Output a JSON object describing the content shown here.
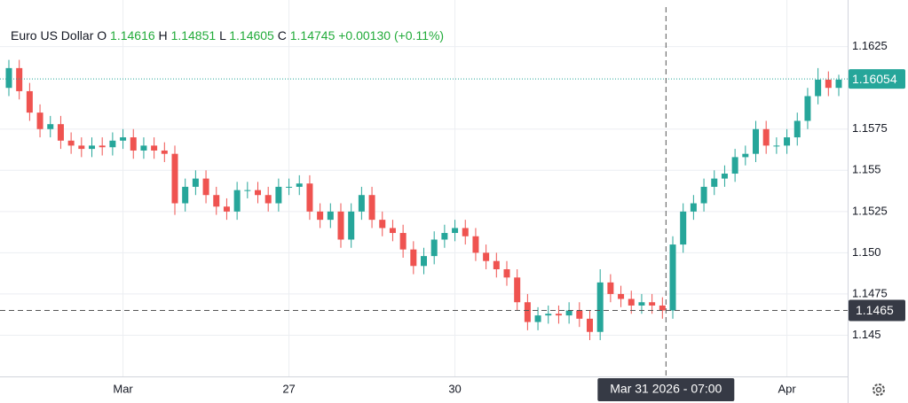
{
  "header": {
    "name": "Euro US Dollar",
    "labels": [
      "O",
      "H",
      "L",
      "C"
    ],
    "values": [
      1.14616,
      1.14851,
      1.14605,
      1.14745
    ],
    "change": "+0.00130",
    "change_pct": "(+0.11%)"
  },
  "chart_data": {
    "type": "candlestick",
    "categories": [
      null,
      null,
      null,
      null,
      null,
      null,
      null,
      null,
      null,
      null,
      null,
      "Mar",
      null,
      null,
      null,
      null,
      null,
      null,
      null,
      null,
      null,
      null,
      null,
      null,
      null,
      null,
      null,
      "27",
      null,
      null,
      null,
      null,
      null,
      null,
      null,
      null,
      null,
      null,
      null,
      null,
      null,
      null,
      null,
      "30",
      null,
      null,
      null,
      null,
      null,
      null,
      null,
      null,
      null,
      null,
      null,
      null,
      null,
      null,
      null,
      null,
      null,
      null,
      null,
      null,
      null,
      null,
      null,
      null,
      null,
      null,
      null,
      null,
      null,
      null,
      null,
      "Apr",
      null,
      null,
      null,
      null,
      null
    ],
    "open": [
      1.16,
      1.1612,
      1.1598,
      1.1585,
      1.1575,
      1.1578,
      1.1568,
      1.1565,
      1.1563,
      1.1565,
      1.1564,
      1.1568,
      1.157,
      1.1562,
      1.1565,
      1.1562,
      1.156,
      1.153,
      1.154,
      1.1545,
      1.1535,
      1.1528,
      1.1525,
      1.1538,
      1.1538,
      1.1535,
      1.153,
      1.154,
      1.154,
      1.1542,
      1.1525,
      1.152,
      1.1525,
      1.1508,
      1.1525,
      1.1535,
      1.152,
      1.1515,
      1.1512,
      1.1502,
      1.1492,
      1.1498,
      1.1508,
      1.1512,
      1.1515,
      1.151,
      1.15,
      1.1495,
      1.149,
      1.1485,
      1.147,
      1.1458,
      1.1462,
      1.1463,
      1.1462,
      1.1465,
      1.146,
      1.1452,
      1.1482,
      1.1475,
      1.1472,
      1.1468,
      1.147,
      1.1468,
      1.1465,
      1.1505,
      1.1525,
      1.153,
      1.154,
      1.1545,
      1.1548,
      1.1558,
      1.156,
      1.1575,
      1.1565,
      1.1565,
      1.157,
      1.158,
      1.1595,
      1.1605,
      1.16
    ],
    "high": [
      1.1617,
      1.1617,
      1.1603,
      1.159,
      1.1583,
      1.1583,
      1.1573,
      1.157,
      1.157,
      1.157,
      1.1573,
      1.1575,
      1.1575,
      1.157,
      1.157,
      1.1567,
      1.1565,
      1.1545,
      1.155,
      1.155,
      1.154,
      1.1533,
      1.1543,
      1.1543,
      1.1543,
      1.154,
      1.1545,
      1.1545,
      1.1547,
      1.1547,
      1.153,
      1.153,
      1.153,
      1.153,
      1.154,
      1.154,
      1.1525,
      1.152,
      1.1517,
      1.1507,
      1.1503,
      1.1513,
      1.1517,
      1.152,
      1.152,
      1.1515,
      1.1505,
      1.15,
      1.1495,
      1.149,
      1.1475,
      1.1467,
      1.1468,
      1.1468,
      1.147,
      1.147,
      1.1465,
      1.149,
      1.1487,
      1.148,
      1.1477,
      1.1475,
      1.1475,
      1.1473,
      1.151,
      1.153,
      1.1535,
      1.1545,
      1.155,
      1.1553,
      1.1563,
      1.1565,
      1.158,
      1.158,
      1.157,
      1.1575,
      1.1585,
      1.16,
      1.1612,
      1.161,
      1.1608
    ],
    "low": [
      1.1595,
      1.1593,
      1.158,
      1.157,
      1.157,
      1.1563,
      1.156,
      1.1558,
      1.1558,
      1.1559,
      1.1559,
      1.1563,
      1.1557,
      1.1557,
      1.1557,
      1.1555,
      1.1523,
      1.1525,
      1.1535,
      1.153,
      1.1523,
      1.152,
      1.152,
      1.1533,
      1.153,
      1.1525,
      1.1525,
      1.1535,
      1.1535,
      1.152,
      1.1515,
      1.1515,
      1.1503,
      1.1503,
      1.152,
      1.1515,
      1.151,
      1.1507,
      1.1497,
      1.1487,
      1.1487,
      1.1493,
      1.1503,
      1.1507,
      1.1505,
      1.1495,
      1.149,
      1.1485,
      1.148,
      1.1465,
      1.1453,
      1.1453,
      1.1457,
      1.1457,
      1.1457,
      1.1455,
      1.1447,
      1.1447,
      1.147,
      1.1467,
      1.1463,
      1.1463,
      1.1463,
      1.146,
      1.146,
      1.15,
      1.152,
      1.1525,
      1.1535,
      1.154,
      1.1543,
      1.1553,
      1.1555,
      1.156,
      1.156,
      1.156,
      1.1565,
      1.1575,
      1.159,
      1.1595,
      1.1595
    ],
    "close": [
      1.1612,
      1.1598,
      1.1585,
      1.1575,
      1.1578,
      1.1568,
      1.1565,
      1.1563,
      1.1565,
      1.1564,
      1.1568,
      1.157,
      1.1562,
      1.1565,
      1.1562,
      1.156,
      1.153,
      1.154,
      1.1545,
      1.1535,
      1.1528,
      1.1525,
      1.1538,
      1.1538,
      1.1535,
      1.153,
      1.154,
      1.154,
      1.1542,
      1.1525,
      1.152,
      1.1525,
      1.1508,
      1.1525,
      1.1535,
      1.152,
      1.1515,
      1.1512,
      1.1502,
      1.1492,
      1.1498,
      1.1508,
      1.1512,
      1.1515,
      1.151,
      1.15,
      1.1495,
      1.149,
      1.1485,
      1.147,
      1.1458,
      1.1462,
      1.1463,
      1.1462,
      1.1465,
      1.146,
      1.1452,
      1.1482,
      1.1475,
      1.1472,
      1.1468,
      1.147,
      1.1468,
      1.1465,
      1.1505,
      1.1525,
      1.153,
      1.154,
      1.1545,
      1.1548,
      1.1558,
      1.156,
      1.1575,
      1.1565,
      1.1565,
      1.157,
      1.158,
      1.1595,
      1.1605,
      1.16,
      1.1605
    ],
    "up_color": "#26a69a",
    "down_color": "#ef5350",
    "ylim": [
      1.1425,
      1.1649
    ],
    "yticks": [
      1.145,
      1.1475,
      {
        "value": 1.15,
        "label": "1.150"
      },
      1.1525,
      1.155,
      1.1575,
      1.1625
    ],
    "grid": true,
    "last_price": 1.16054,
    "crosshair": {
      "x_label": "Mar 31 2026 - 07:00",
      "y": 1.1465
    }
  }
}
